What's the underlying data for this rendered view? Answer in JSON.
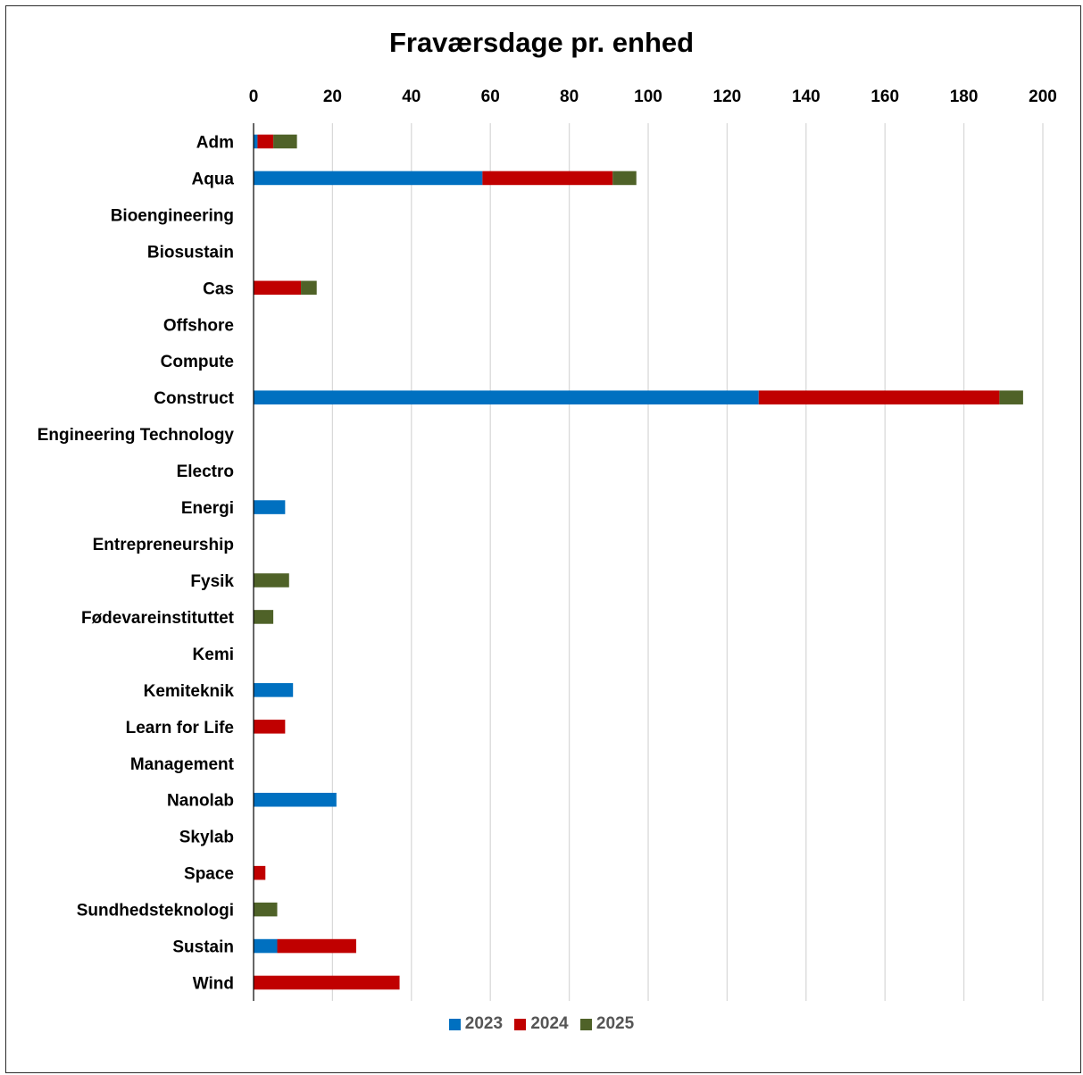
{
  "chart_data": {
    "type": "bar",
    "orientation": "horizontal",
    "stacked": true,
    "title": "Fraværsdage pr. enhed",
    "xlim": [
      0,
      200
    ],
    "x_ticks": [
      "0",
      "20",
      "40",
      "60",
      "80",
      "100",
      "120",
      "140",
      "160",
      "180",
      "200"
    ],
    "x_axis_position": "top",
    "grid": true,
    "legend_position": "bottom",
    "categories": [
      "Adm",
      "Aqua",
      "Bioengineering",
      "Biosustain",
      "Cas",
      "Offshore",
      "Compute",
      "Construct",
      "Engineering Technology",
      "Electro",
      "Energi",
      "Entrepreneurship",
      "Fysik",
      "Fødevareinstituttet",
      "Kemi",
      "Kemiteknik",
      "Learn for Life",
      "Management",
      "Nanolab",
      "Skylab",
      "Space",
      "Sundhedsteknologi",
      "Sustain",
      "Wind"
    ],
    "series": [
      {
        "name": "2023",
        "color": "#0070C0",
        "values": [
          1,
          58,
          0,
          0,
          0,
          0,
          0,
          128,
          0,
          0,
          8,
          0,
          0,
          0,
          0,
          10,
          0,
          0,
          21,
          0,
          0,
          0,
          6,
          0
        ]
      },
      {
        "name": "2024",
        "color": "#C00000",
        "values": [
          4,
          33,
          0,
          0,
          12,
          0,
          0,
          61,
          0,
          0,
          0,
          0,
          0,
          0,
          0,
          0,
          8,
          0,
          0,
          0,
          3,
          0,
          20,
          37
        ]
      },
      {
        "name": "2025",
        "color": "#4F6228",
        "values": [
          6,
          6,
          0,
          0,
          4,
          0,
          0,
          6,
          0,
          0,
          0,
          0,
          9,
          5,
          0,
          0,
          0,
          0,
          0,
          0,
          0,
          6,
          0,
          0
        ]
      }
    ]
  }
}
